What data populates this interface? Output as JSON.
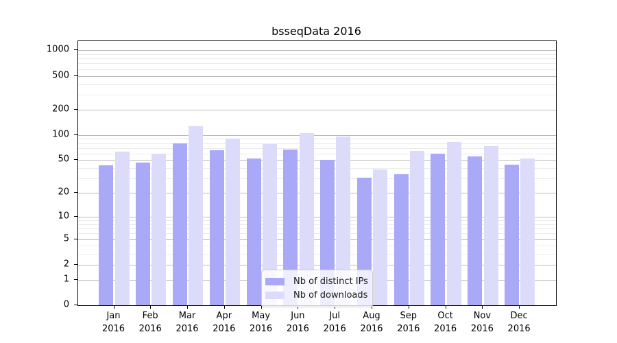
{
  "chart_data": {
    "type": "bar",
    "title": "bsseqData 2016",
    "scale": "log10(1+y)",
    "year": "2016",
    "categories": [
      "Jan",
      "Feb",
      "Mar",
      "Apr",
      "May",
      "Jun",
      "Jul",
      "Aug",
      "Sep",
      "Oct",
      "Nov",
      "Dec"
    ],
    "series": [
      {
        "name": "Nb of distinct IPs",
        "color": "#a9a9f7",
        "values": [
          43,
          47,
          79,
          66,
          52,
          67,
          50,
          31,
          34,
          60,
          55,
          44
        ]
      },
      {
        "name": "Nb of downloads",
        "color": "#dcdcfa",
        "values": [
          63,
          60,
          127,
          90,
          78,
          105,
          95,
          39,
          64,
          83,
          74,
          52
        ]
      }
    ],
    "yticks": [
      0,
      1,
      2,
      5,
      10,
      20,
      50,
      100,
      200,
      500,
      1000
    ],
    "minor_ticks": [
      3,
      4,
      6,
      7,
      8,
      9,
      30,
      40,
      60,
      70,
      80,
      90,
      300,
      400,
      600,
      700,
      800,
      900
    ],
    "ylim": [
      0,
      1000
    ],
    "xlabel": "",
    "ylabel": "",
    "grid": true,
    "legend_position": "lower-center"
  }
}
